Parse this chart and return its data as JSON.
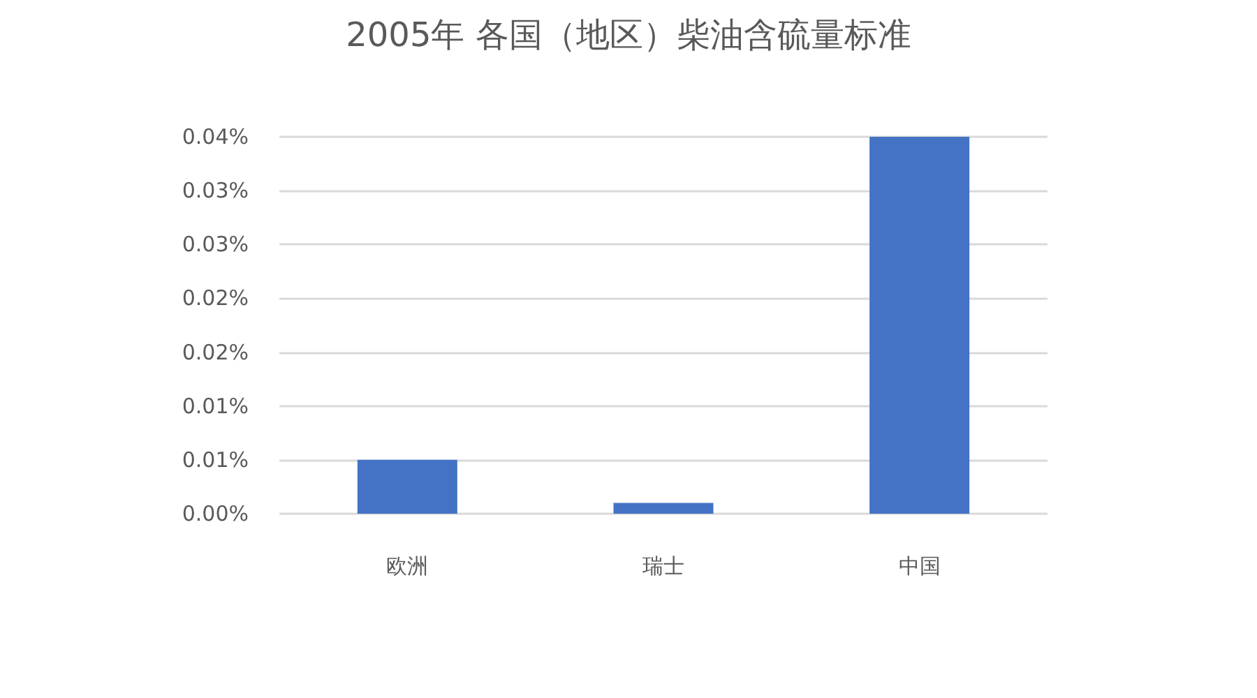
{
  "chart_data": {
    "type": "bar",
    "title": "2005年 各国（地区）柴油含硫量标准",
    "categories": [
      "欧洲",
      "瑞士",
      "中国"
    ],
    "values": [
      0.005,
      0.001,
      0.035
    ],
    "color": "#4472c4",
    "ylim": [
      0,
      0.035
    ],
    "yticks": [
      {
        "value": 0,
        "label": "0.00%"
      },
      {
        "value": 0.005,
        "label": "0.01%"
      },
      {
        "value": 0.01,
        "label": "0.01%"
      },
      {
        "value": 0.015,
        "label": "0.02%"
      },
      {
        "value": 0.02,
        "label": "0.02%"
      },
      {
        "value": 0.025,
        "label": "0.03%"
      },
      {
        "value": 0.03,
        "label": "0.03%"
      },
      {
        "value": 0.035,
        "label": "0.04%"
      }
    ],
    "grid": true
  }
}
